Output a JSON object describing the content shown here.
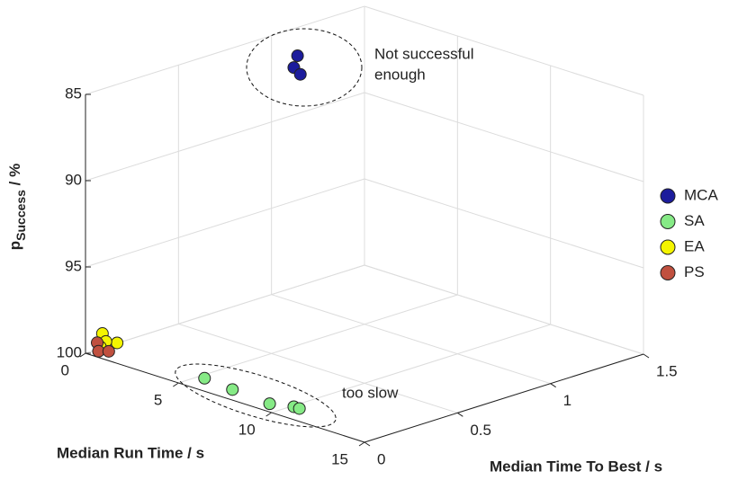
{
  "chart_data": {
    "type": "scatter3d",
    "xlabel": "Median Run Time / s",
    "ylabel": "Median Time To Best / s",
    "zlabel": {
      "symbol": "p",
      "subscript": "Success",
      "unit": " / %"
    },
    "xlim": [
      0,
      15
    ],
    "xticks": [
      0,
      5,
      10,
      15
    ],
    "ylim": [
      0,
      1.5
    ],
    "yticks": [
      0,
      0.5,
      1,
      1.5
    ],
    "zlim": [
      85,
      100
    ],
    "zticks": [
      85,
      90,
      95,
      100
    ],
    "zdir": "reverse",
    "grid": true,
    "legend": "right",
    "series": [
      {
        "name": "MCA",
        "color": "#1c1c9c",
        "x": [
          2.4,
          3.3,
          4.05
        ],
        "y": [
          0.9,
          0.79,
          0.75
        ],
        "z": [
          85,
          85,
          85
        ]
      },
      {
        "name": "SA",
        "color": "#86ea86",
        "x": [
          5.3,
          7.0,
          9.2,
          10.1,
          10.4
        ],
        "y": [
          0.11,
          0.09,
          0.07,
          0.11,
          0.11
        ],
        "z": [
          100,
          100,
          100,
          100,
          100
        ]
      },
      {
        "name": "EA",
        "color": "#f5f500",
        "x": [
          0.7,
          0.46,
          0.5,
          0.3
        ],
        "y": [
          0.1,
          0.045,
          0.06,
          0.05
        ],
        "z": [
          99.5,
          98.85,
          99.35,
          99.7
        ]
      },
      {
        "name": "PS",
        "color": "#c0503f",
        "x": [
          0.3,
          0.4,
          0.75
        ],
        "y": [
          0.033,
          0.03,
          0.05
        ],
        "z": [
          99.4,
          99.85,
          99.8
        ]
      }
    ],
    "annotations": [
      {
        "lines": [
          "Not successful",
          "enough"
        ]
      },
      {
        "lines": [
          "too slow"
        ]
      }
    ]
  }
}
